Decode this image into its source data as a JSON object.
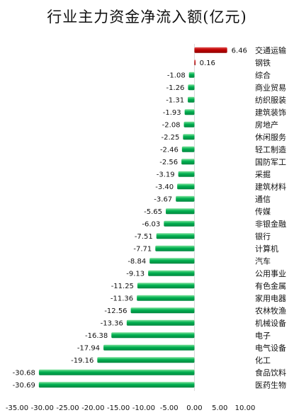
{
  "chart_data": {
    "type": "bar",
    "orientation": "horizontal",
    "title": "行业主力资金净流入额(亿元)",
    "categories": [
      "交通运输",
      "钢铁",
      "综合",
      "商业贸易",
      "纺织服装",
      "建筑装饰",
      "房地产",
      "休闲服务",
      "轻工制造",
      "国防军工",
      "采掘",
      "建筑材料",
      "通信",
      "传媒",
      "非银金融",
      "银行",
      "计算机",
      "汽车",
      "公用事业",
      "有色金属",
      "家用电器",
      "农林牧渔",
      "机械设备",
      "电子",
      "电气设备",
      "化工",
      "食品饮料",
      "医药生物"
    ],
    "values": [
      6.46,
      0.16,
      -1.08,
      -1.26,
      -1.31,
      -1.93,
      -2.08,
      -2.25,
      -2.46,
      -2.56,
      -3.19,
      -3.4,
      -3.67,
      -5.65,
      -6.03,
      -7.51,
      -7.71,
      -8.84,
      -9.13,
      -11.25,
      -11.36,
      -12.56,
      -13.36,
      -16.38,
      -17.94,
      -19.16,
      -30.68,
      -30.69
    ],
    "value_labels": [
      "6.46",
      "0.16",
      "-1.08",
      "-1.26",
      "-1.31",
      "-1.93",
      "-2.08",
      "-2.25",
      "-2.46",
      "-2.56",
      "-3.19",
      "-3.40",
      "-3.67",
      "-5.65",
      "-6.03",
      "-7.51",
      "-7.71",
      "-8.84",
      "-9.13",
      "-11.25",
      "-11.36",
      "-12.56",
      "-13.36",
      "-16.38",
      "-17.94",
      "-19.16",
      "-30.68",
      "-30.69"
    ],
    "xlim": [
      -35,
      10
    ],
    "x_ticks": [
      "-35.00",
      "-30.00",
      "-25.00",
      "-20.00",
      "-15.00",
      "-10.00",
      "-5.00",
      "0.00",
      "5.00",
      "10.00"
    ],
    "grid": false,
    "legend": "none",
    "colors": {
      "positive": "#c00000",
      "negative": "#00b050"
    }
  }
}
